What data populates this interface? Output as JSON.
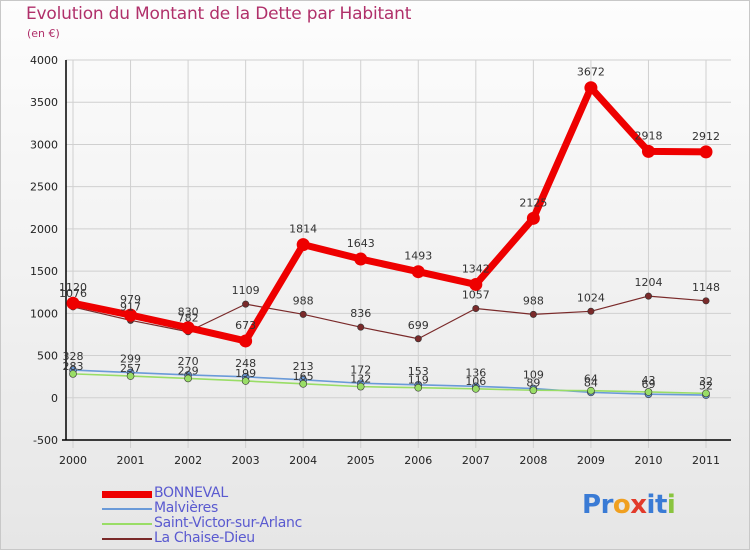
{
  "title": "Evolution du Montant de la Dette par Habitant",
  "subtitle": "(en €)",
  "logo": {
    "text": "Proxiti",
    "letters": [
      "P",
      "r",
      "o",
      "x",
      "i",
      "t",
      "i"
    ],
    "colors": [
      "#3a7bd5",
      "#3a7bd5",
      "#f0a020",
      "#e23a2a",
      "#3a7bd5",
      "#3a7bd5",
      "#8ac43f"
    ]
  },
  "chart_data": {
    "type": "line",
    "x": [
      "2000",
      "2001",
      "2002",
      "2003",
      "2004",
      "2005",
      "2006",
      "2007",
      "2008",
      "2009",
      "2010",
      "2011"
    ],
    "ylim": [
      -500,
      4000
    ],
    "yticks": [
      "-500",
      "0",
      "500",
      "1000",
      "1500",
      "2000",
      "2500",
      "3000",
      "3500",
      "4000"
    ],
    "grid": true,
    "legend": "bottom-left",
    "series": [
      {
        "name": "BONNEVAL",
        "color": "#ee0000",
        "values": [
          1120,
          979,
          830,
          673,
          1814,
          1643,
          1493,
          1342,
          2125,
          3672,
          2918,
          2912
        ],
        "labels": [
          "1120",
          "979",
          "830",
          "673",
          "1814",
          "1643",
          "1493",
          "1342",
          "2125",
          "3672",
          "2918",
          "2912"
        ]
      },
      {
        "name": "Malvières",
        "color": "#6a9ad8",
        "values": [
          328,
          299,
          270,
          248,
          213,
          172,
          153,
          136,
          109,
          64,
          43,
          32
        ],
        "labels": [
          "328",
          "299",
          "270",
          "248",
          "213",
          "172",
          "153",
          "136",
          "109",
          "64",
          "43",
          "32"
        ]
      },
      {
        "name": "Saint-Victor-sur-Arlanc",
        "color": "#99dd66",
        "values": [
          283,
          257,
          229,
          199,
          165,
          132,
          119,
          106,
          89,
          84,
          69,
          52
        ],
        "labels": [
          "283",
          "257",
          "229",
          "199",
          "165",
          "132",
          "119",
          "106",
          "89",
          "84",
          "69",
          "52"
        ]
      },
      {
        "name": "La Chaise-Dieu",
        "color": "#7a2a2a",
        "values": [
          1076,
          917,
          782,
          1109,
          988,
          836,
          699,
          1057,
          988,
          1024,
          1204,
          1148
        ],
        "labels": [
          "1076",
          "917",
          "782",
          "1109",
          "988",
          "836",
          "699",
          "1057",
          "988",
          "1024",
          "1204",
          "1148"
        ]
      }
    ]
  }
}
